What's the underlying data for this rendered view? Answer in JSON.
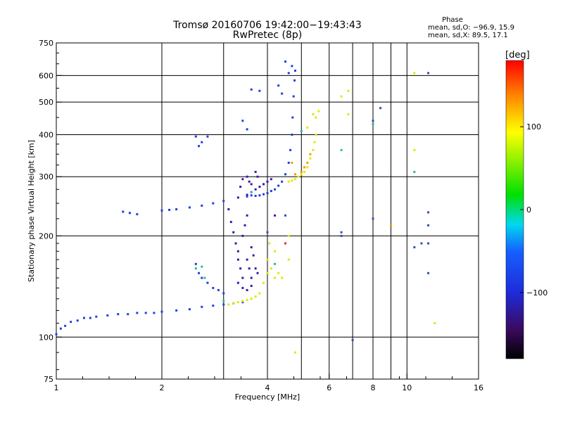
{
  "chart_data": {
    "type": "scatter",
    "title": "Tromsø 20160706 19:42:00−19:43:43",
    "subtitle": "RwPretec (8p)",
    "xlabel": "Frequency [MHz]",
    "ylabel": "Stationary phase Virtual Height [km]",
    "x_scale": "log2",
    "y_scale": "log",
    "xlim": [
      1,
      16
    ],
    "ylim": [
      75,
      750
    ],
    "x_ticks": [
      1,
      2,
      4,
      6,
      8,
      10,
      16
    ],
    "x_tick_labels": [
      "1",
      "2",
      "4",
      "6",
      "8",
      "10",
      "16"
    ],
    "x_grid": [
      1,
      2,
      3,
      4,
      5,
      6,
      7,
      8,
      9,
      10
    ],
    "y_ticks": [
      75,
      100,
      200,
      300,
      400,
      500,
      600,
      750
    ],
    "y_tick_labels": [
      "75",
      "100",
      "200",
      "300",
      "400",
      "500",
      "600",
      "750"
    ],
    "y_grid": [
      100,
      200,
      300,
      400,
      500,
      600
    ],
    "grid": true,
    "phase_stats": {
      "title": "Phase",
      "line1": "mean, sd,O: −96.9, 15.9",
      "line2": "mean, sd,X:  89.5, 17.1"
    },
    "colorbar": {
      "label": "[deg]",
      "range": [
        -180,
        180
      ],
      "ticks": [
        100,
        0,
        -100
      ],
      "tick_labels": [
        "100",
        "0",
        "−100"
      ]
    },
    "series": [
      {
        "color": "#2040e0",
        "phase": -100,
        "points": [
          [
            1.0,
            102
          ],
          [
            1.03,
            106
          ],
          [
            1.06,
            108
          ],
          [
            1.1,
            111
          ],
          [
            1.15,
            112
          ],
          [
            1.2,
            114
          ],
          [
            1.25,
            114
          ],
          [
            1.3,
            115
          ],
          [
            1.4,
            116
          ],
          [
            1.5,
            117
          ],
          [
            1.6,
            117
          ],
          [
            1.7,
            118
          ],
          [
            1.8,
            118
          ],
          [
            1.9,
            118
          ],
          [
            2.0,
            119
          ],
          [
            2.2,
            120
          ],
          [
            2.4,
            121
          ],
          [
            2.6,
            123
          ],
          [
            2.8,
            124
          ],
          [
            3.0,
            125
          ],
          [
            3.2,
            126
          ],
          [
            3.4,
            127
          ],
          [
            1.55,
            236
          ],
          [
            1.62,
            234
          ],
          [
            1.7,
            232
          ],
          [
            2.0,
            238
          ],
          [
            2.1,
            239
          ],
          [
            2.2,
            240
          ],
          [
            2.4,
            243
          ],
          [
            2.6,
            246
          ],
          [
            2.8,
            250
          ],
          [
            3.0,
            254
          ],
          [
            3.5,
            262
          ],
          [
            3.6,
            264
          ],
          [
            3.7,
            263
          ],
          [
            3.8,
            264
          ],
          [
            3.9,
            266
          ],
          [
            4.0,
            268
          ],
          [
            4.1,
            272
          ],
          [
            4.2,
            275
          ],
          [
            4.3,
            282
          ],
          [
            4.4,
            290
          ],
          [
            4.5,
            305
          ],
          [
            4.6,
            330
          ],
          [
            4.65,
            360
          ],
          [
            4.7,
            400
          ],
          [
            4.72,
            450
          ],
          [
            4.75,
            520
          ],
          [
            4.78,
            580
          ],
          [
            4.8,
            620
          ],
          [
            4.7,
            640
          ],
          [
            4.6,
            610
          ],
          [
            4.5,
            660
          ],
          [
            4.3,
            560
          ],
          [
            4.4,
            530
          ],
          [
            3.6,
            545
          ],
          [
            3.8,
            540
          ],
          [
            3.4,
            440
          ],
          [
            3.5,
            415
          ],
          [
            2.5,
            395
          ],
          [
            2.7,
            395
          ],
          [
            2.6,
            380
          ],
          [
            2.55,
            370
          ],
          [
            2.5,
            165
          ],
          [
            2.55,
            155
          ],
          [
            2.6,
            150
          ],
          [
            2.7,
            145
          ],
          [
            2.8,
            140
          ],
          [
            2.9,
            138
          ],
          [
            3.0,
            135
          ]
        ]
      },
      {
        "color": "#3b1aa8",
        "phase": -130,
        "points": [
          [
            3.1,
            240
          ],
          [
            3.15,
            220
          ],
          [
            3.2,
            205
          ],
          [
            3.25,
            190
          ],
          [
            3.3,
            180
          ],
          [
            3.3,
            170
          ],
          [
            3.35,
            160
          ],
          [
            3.4,
            150
          ],
          [
            3.4,
            200
          ],
          [
            3.45,
            215
          ],
          [
            3.5,
            230
          ],
          [
            3.5,
            170
          ],
          [
            3.55,
            160
          ],
          [
            3.6,
            150
          ],
          [
            3.6,
            185
          ],
          [
            3.65,
            175
          ],
          [
            3.7,
            160
          ],
          [
            3.75,
            155
          ],
          [
            3.3,
            260
          ],
          [
            3.35,
            280
          ],
          [
            3.4,
            295
          ],
          [
            3.5,
            300
          ],
          [
            3.55,
            290
          ],
          [
            3.6,
            285
          ],
          [
            3.7,
            310
          ],
          [
            3.75,
            300
          ],
          [
            3.5,
            265
          ],
          [
            3.6,
            270
          ],
          [
            3.7,
            275
          ],
          [
            3.8,
            280
          ],
          [
            3.9,
            285
          ],
          [
            4.0,
            290
          ],
          [
            4.1,
            295
          ],
          [
            3.3,
            145
          ],
          [
            3.4,
            140
          ],
          [
            3.5,
            138
          ],
          [
            3.6,
            142
          ],
          [
            4.2,
            230
          ]
        ]
      },
      {
        "color": "#e6e600",
        "phase": 100,
        "points": [
          [
            3.1,
            125
          ],
          [
            3.2,
            126
          ],
          [
            3.3,
            127
          ],
          [
            3.4,
            128
          ],
          [
            3.5,
            129
          ],
          [
            3.6,
            130
          ],
          [
            3.7,
            132
          ],
          [
            3.8,
            135
          ],
          [
            3.9,
            145
          ],
          [
            4.0,
            155
          ],
          [
            4.0,
            170
          ],
          [
            4.05,
            190
          ],
          [
            4.1,
            160
          ],
          [
            4.2,
            150
          ],
          [
            4.3,
            155
          ],
          [
            4.4,
            150
          ],
          [
            4.2,
            180
          ],
          [
            4.6,
            200
          ],
          [
            4.6,
            170
          ],
          [
            4.6,
            290
          ],
          [
            4.7,
            292
          ],
          [
            4.8,
            295
          ],
          [
            4.9,
            300
          ],
          [
            5.0,
            305
          ],
          [
            5.1,
            310
          ],
          [
            5.2,
            320
          ],
          [
            5.3,
            340
          ],
          [
            5.4,
            360
          ],
          [
            5.45,
            380
          ],
          [
            5.5,
            400
          ],
          [
            5.5,
            450
          ],
          [
            5.4,
            460
          ],
          [
            5.6,
            470
          ],
          [
            5.2,
            420
          ],
          [
            6.5,
            520
          ],
          [
            6.8,
            540
          ],
          [
            6.8,
            460
          ],
          [
            10.5,
            610
          ],
          [
            10.5,
            360
          ],
          [
            12.0,
            110
          ],
          [
            4.8,
            90
          ]
        ]
      },
      {
        "color": "#f0a000",
        "phase": 140,
        "points": [
          [
            4.8,
            305
          ],
          [
            5.0,
            310
          ],
          [
            5.1,
            320
          ],
          [
            5.2,
            330
          ],
          [
            5.3,
            350
          ],
          [
            9.0,
            215
          ],
          [
            4.7,
            330
          ]
        ]
      },
      {
        "color": "#20c0a0",
        "phase": -60,
        "points": [
          [
            2.5,
            160
          ],
          [
            2.6,
            162
          ],
          [
            2.65,
            150
          ],
          [
            3.0,
            128
          ],
          [
            3.6,
            270
          ],
          [
            4.2,
            165
          ],
          [
            5.0,
            410
          ],
          [
            6.5,
            360
          ],
          [
            10.5,
            310
          ],
          [
            8.0,
            430
          ]
        ]
      },
      {
        "color": "#3050c0",
        "phase": -110,
        "points": [
          [
            6.5,
            200
          ],
          [
            6.5,
            205
          ],
          [
            7.0,
            98
          ],
          [
            8.0,
            440
          ],
          [
            8.0,
            225
          ],
          [
            8.4,
            480
          ],
          [
            10.5,
            185
          ],
          [
            11.5,
            610
          ],
          [
            11.5,
            235
          ],
          [
            11.5,
            215
          ],
          [
            11.5,
            190
          ],
          [
            11.5,
            155
          ],
          [
            11.0,
            190
          ],
          [
            4.5,
            230
          ],
          [
            4.0,
            205
          ]
        ]
      },
      {
        "color": "#e03030",
        "phase": 170,
        "points": [
          [
            4.5,
            190
          ]
        ]
      }
    ]
  }
}
